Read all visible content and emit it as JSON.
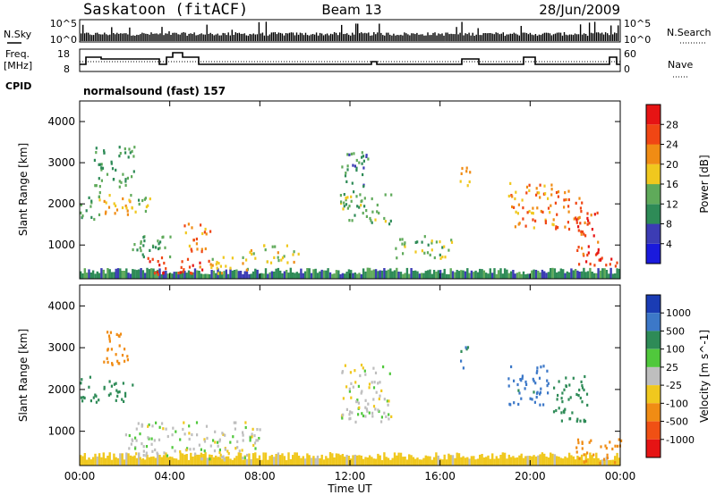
{
  "header": {
    "station": "Saskatoon (fitACF)",
    "beam": "Beam 13",
    "date": "28/Jun/2009"
  },
  "sky_panel": {
    "left_label": "N.Sky",
    "right_label": "N.Search",
    "ticks_left": [
      "10^5",
      "10^0"
    ],
    "ticks_right": [
      "10^5",
      "10^0"
    ]
  },
  "freq_panel": {
    "left_label_1": "Freq.",
    "left_label_2": "[MHz]",
    "ticks_left": [
      "18",
      "8"
    ],
    "right_label": "Nave",
    "ticks_right": [
      "60",
      "0"
    ]
  },
  "cpid": {
    "label": "CPID",
    "program": "normalsound (fast) 157"
  },
  "x_axis": {
    "label": "Time UT",
    "ticks": [
      "00:00",
      "04:00",
      "08:00",
      "12:00",
      "16:00",
      "20:00",
      "00:00"
    ]
  },
  "power_colorbar": {
    "label": "Power [dB]",
    "ticks": [
      "4",
      "8",
      "12",
      "16",
      "20",
      "24",
      "28"
    ],
    "colors": [
      "#1a1adc",
      "#3c3cb4",
      "#2e8b57",
      "#5faa5a",
      "#f0c81e",
      "#f08c14",
      "#f04614",
      "#e61414"
    ]
  },
  "velocity_colorbar": {
    "label": "Velocity [m s^-1]",
    "ticks": [
      "1000",
      "500",
      "100",
      "25",
      "-25",
      "-100",
      "-500",
      "-1000"
    ],
    "colors": [
      "#1a3cb4",
      "#3c78c8",
      "#2e8b57",
      "#50c83c",
      "#bebebe",
      "#f0c81e",
      "#f08c14",
      "#f05014",
      "#e61414"
    ]
  },
  "chart_data": [
    {
      "type": "heatmap",
      "panel": "power",
      "ylabel": "Slant Range [km]",
      "xlabel": "Time UT",
      "xlim": [
        0,
        24
      ],
      "ylim": [
        180,
        4500
      ],
      "yticks": [
        1000,
        2000,
        3000,
        4000
      ],
      "blobs": [
        {
          "t0": 0.0,
          "t1": 0.9,
          "r0": 1600,
          "r1": 2300,
          "value": 14
        },
        {
          "t0": 0.6,
          "t1": 2.4,
          "r0": 2400,
          "r1": 3400,
          "value": 12
        },
        {
          "t0": 1.0,
          "t1": 2.5,
          "r0": 1700,
          "r1": 2200,
          "value": 20
        },
        {
          "t0": 2.0,
          "t1": 3.2,
          "r0": 1800,
          "r1": 2200,
          "value": 14
        },
        {
          "t0": 2.2,
          "t1": 4.0,
          "r0": 700,
          "r1": 1300,
          "value": 12
        },
        {
          "t0": 3.0,
          "t1": 4.8,
          "r0": 250,
          "r1": 700,
          "value": 28
        },
        {
          "t0": 4.8,
          "t1": 5.9,
          "r0": 250,
          "r1": 600,
          "value": 27
        },
        {
          "t0": 4.6,
          "t1": 5.8,
          "r0": 800,
          "r1": 1500,
          "value": 22
        },
        {
          "t0": 5.8,
          "t1": 7.5,
          "r0": 250,
          "r1": 700,
          "value": 18
        },
        {
          "t0": 7.5,
          "t1": 9.8,
          "r0": 550,
          "r1": 1000,
          "value": 18
        },
        {
          "t0": 11.5,
          "t1": 12.8,
          "r0": 2400,
          "r1": 3300,
          "value": 10
        },
        {
          "t0": 11.5,
          "t1": 13.8,
          "r0": 1500,
          "r1": 2300,
          "value": 14
        },
        {
          "t0": 14.0,
          "t1": 16.5,
          "r0": 650,
          "r1": 1200,
          "value": 14
        },
        {
          "t0": 16.8,
          "t1": 17.3,
          "r0": 2400,
          "r1": 3000,
          "value": 20
        },
        {
          "t0": 19.0,
          "t1": 21.0,
          "r0": 1400,
          "r1": 2500,
          "value": 22
        },
        {
          "t0": 21.0,
          "t1": 22.3,
          "r0": 1300,
          "r1": 2300,
          "value": 24
        },
        {
          "t0": 22.0,
          "t1": 23.0,
          "r0": 400,
          "r1": 1800,
          "value": 26
        },
        {
          "t0": 23.0,
          "t1": 23.9,
          "r0": 300,
          "r1": 700,
          "value": 26
        }
      ],
      "near_range_band": {
        "r0": 180,
        "r1": 450,
        "value": 10
      }
    },
    {
      "type": "heatmap",
      "panel": "velocity",
      "ylabel": "Slant Range [km]",
      "xlabel": "Time UT",
      "xlim": [
        0,
        24
      ],
      "ylim": [
        180,
        4500
      ],
      "yticks": [
        1000,
        2000,
        3000,
        4000
      ],
      "blobs": [
        {
          "t0": 0.0,
          "t1": 0.8,
          "r0": 1600,
          "r1": 2300,
          "value": 200
        },
        {
          "t0": 1.0,
          "t1": 2.2,
          "r0": 2500,
          "r1": 3400,
          "value": -300
        },
        {
          "t0": 1.0,
          "t1": 2.5,
          "r0": 1700,
          "r1": 2200,
          "value": 150
        },
        {
          "t0": 2.0,
          "t1": 8.0,
          "r0": 300,
          "r1": 1200,
          "value": 0
        },
        {
          "t0": 11.5,
          "t1": 13.8,
          "r0": 1200,
          "r1": 2600,
          "value": 0
        },
        {
          "t0": 16.8,
          "t1": 17.3,
          "r0": 2500,
          "r1": 3000,
          "value": 500
        },
        {
          "t0": 19.0,
          "t1": 20.8,
          "r0": 1600,
          "r1": 2600,
          "value": 700
        },
        {
          "t0": 21.0,
          "t1": 22.5,
          "r0": 1200,
          "r1": 2400,
          "value": 150
        },
        {
          "t0": 22.0,
          "t1": 24.0,
          "r0": 200,
          "r1": 800,
          "value": -150
        }
      ],
      "near_range_band": {
        "r0": 180,
        "r1": 500,
        "value": -50
      }
    }
  ]
}
